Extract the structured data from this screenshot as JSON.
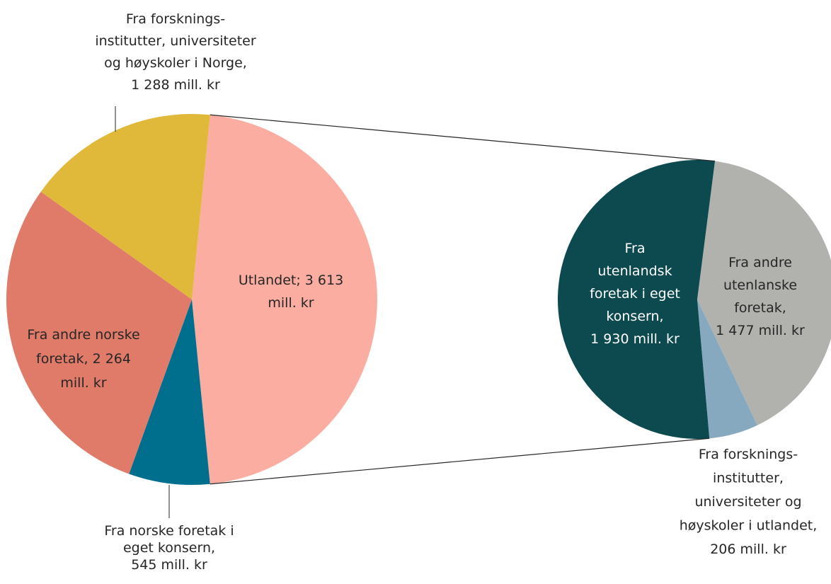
{
  "chart_data": [
    {
      "type": "pie",
      "categories": [
        [
          "Utlandet; 3 613",
          "mill. kr"
        ],
        [
          "Fra norske foretak i",
          "eget konsern,",
          "545 mill. kr"
        ],
        [
          "Fra andre norske",
          "foretak, 2 264",
          "mill. kr"
        ],
        [
          "Fra forsknings-",
          "institutter, universiteter",
          "og høyskoler i Norge,",
          "1 288 mill. kr"
        ]
      ],
      "values": [
        3613,
        545,
        2264,
        1288
      ],
      "colors": [
        "#fcada1",
        "#006f8e",
        "#e07a69",
        "#e0b83a"
      ]
    },
    {
      "type": "pie",
      "categories": [
        [
          "Fra andre",
          "utenlanske",
          "foretak,",
          "1 477 mill. kr"
        ],
        [
          "Fra forsknings-",
          "institutter,",
          "universiteter og",
          "høyskoler i utlandet,",
          "206 mill. kr"
        ],
        [
          "Fra",
          "utenlandsk",
          "foretak i eget",
          "konsern,",
          "1 930 mill. kr"
        ]
      ],
      "values": [
        1477,
        206,
        1930
      ],
      "colors": [
        "#b1b2ae",
        "#86a9bf",
        "#0c4a4f"
      ]
    }
  ]
}
